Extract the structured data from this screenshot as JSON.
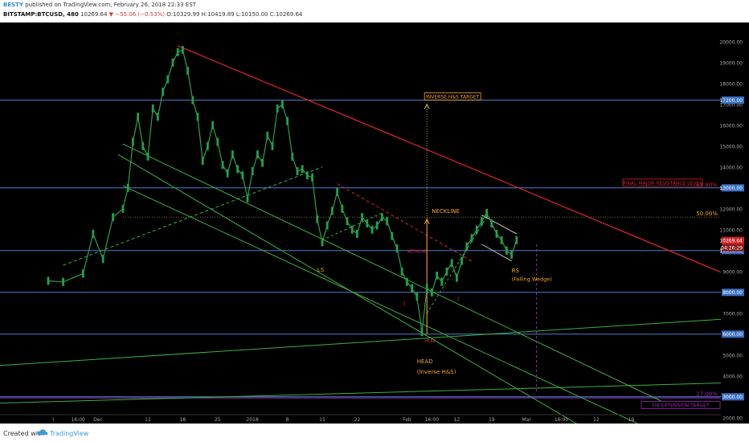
{
  "header": {
    "author": "BESTY",
    "published": "published on TradingView.com, February 26, 2018 22:33 EST",
    "symbol": "BITSTAMP:BTCUSD, 480",
    "price": "10269.64",
    "change": "▼ −55.06 (−0.53%)",
    "ohlc": "O:10329.99 H:10419.89 L:10150.00 C:10269.64"
  },
  "footer": {
    "created": "Created with",
    "brand": "TradingView"
  },
  "colors": {
    "resistance": "#d2232a",
    "channel": "#3cb043",
    "hline": "#4a7fd4",
    "target": "#f5a623",
    "fib": "#9b27b0"
  },
  "chart_data": {
    "type": "line",
    "title": "",
    "ylim": [
      1000,
      20800
    ],
    "y_ticks": [
      2000,
      3000,
      4000,
      5000,
      6000,
      7000,
      8000,
      9000,
      10000,
      11000,
      12000,
      13000,
      14000,
      15000,
      16000,
      17000,
      18000,
      19000,
      20000
    ],
    "y_tick_labels": [
      "2000.00",
      "3000.00",
      "4000.00",
      "5000.00",
      "6000.00",
      "7000.00",
      "8000.00",
      "9000.00",
      "10000.00",
      "11000.00",
      "12000.00",
      "13000.00",
      "14000.00",
      "15000.00",
      "16000.00",
      "17000.00",
      "18000.00",
      "19000.00",
      "20000.00"
    ],
    "x_ticks": [
      {
        "day": -14,
        "label": "I"
      },
      {
        "day": -9,
        "label": "16:00"
      },
      {
        "day": -5,
        "label": "Dec"
      },
      {
        "day": 5,
        "label": "11"
      },
      {
        "day": 12,
        "label": "18"
      },
      {
        "day": 19,
        "label": "25"
      },
      {
        "day": 26,
        "label": "2018"
      },
      {
        "day": 33,
        "label": "8"
      },
      {
        "day": 40,
        "label": "15"
      },
      {
        "day": 47,
        "label": "22"
      },
      {
        "day": 57,
        "label": "Feb"
      },
      {
        "day": 62,
        "label": "16:00"
      },
      {
        "day": 67,
        "label": "12"
      },
      {
        "day": 74,
        "label": "19"
      },
      {
        "day": 81,
        "label": "Mar"
      },
      {
        "day": 88,
        "label": "16:00"
      },
      {
        "day": 95,
        "label": "12"
      },
      {
        "day": 102,
        "label": "19"
      }
    ],
    "series": [
      {
        "price_path": [
          [
            -15,
            8550
          ],
          [
            -12,
            8500
          ],
          [
            -8,
            8900
          ],
          [
            -6,
            10800
          ],
          [
            -4,
            9600
          ],
          [
            -2,
            11600
          ],
          [
            0,
            12000
          ],
          [
            1,
            13000
          ],
          [
            2,
            15200
          ],
          [
            3,
            16400
          ],
          [
            4,
            15000
          ],
          [
            5,
            14500
          ],
          [
            6,
            16800
          ],
          [
            7,
            16400
          ],
          [
            8,
            17600
          ],
          [
            9,
            18200
          ],
          [
            10,
            19000
          ],
          [
            11,
            19500
          ],
          [
            12,
            19600
          ],
          [
            13,
            18600
          ],
          [
            14,
            17200
          ],
          [
            15,
            16400
          ],
          [
            16,
            14300
          ],
          [
            17,
            15000
          ],
          [
            18,
            16000
          ],
          [
            19,
            15200
          ],
          [
            20,
            14100
          ],
          [
            21,
            13700
          ],
          [
            22,
            14600
          ],
          [
            23,
            13900
          ],
          [
            24,
            13600
          ],
          [
            25,
            12500
          ],
          [
            26,
            13800
          ],
          [
            27,
            14600
          ],
          [
            28,
            14200
          ],
          [
            29,
            15500
          ],
          [
            30,
            15000
          ],
          [
            31,
            16800
          ],
          [
            32,
            17000
          ],
          [
            33,
            16200
          ],
          [
            34,
            14500
          ],
          [
            35,
            13800
          ],
          [
            36,
            13900
          ],
          [
            37,
            13600
          ],
          [
            38,
            13500
          ],
          [
            39,
            11500
          ],
          [
            40,
            10400
          ],
          [
            41,
            11200
          ],
          [
            42,
            11900
          ],
          [
            43,
            12800
          ],
          [
            44,
            12000
          ],
          [
            45,
            11400
          ],
          [
            46,
            11000
          ],
          [
            47,
            10800
          ],
          [
            48,
            11600
          ],
          [
            49,
            11300
          ],
          [
            50,
            11000
          ],
          [
            51,
            11200
          ],
          [
            52,
            11600
          ],
          [
            53,
            11400
          ],
          [
            54,
            10700
          ],
          [
            55,
            10100
          ],
          [
            56,
            9000
          ],
          [
            57,
            8500
          ],
          [
            58,
            8200
          ],
          [
            59,
            7800
          ],
          [
            60,
            6100
          ],
          [
            61,
            8200
          ],
          [
            62,
            8000
          ],
          [
            63,
            8800
          ],
          [
            64,
            8500
          ],
          [
            65,
            9000
          ],
          [
            66,
            9400
          ],
          [
            67,
            8700
          ],
          [
            68,
            9500
          ],
          [
            69,
            10200
          ],
          [
            70,
            10600
          ],
          [
            71,
            11000
          ],
          [
            72,
            11400
          ],
          [
            73,
            11800
          ],
          [
            74,
            11300
          ],
          [
            75,
            10800
          ],
          [
            76,
            10500
          ],
          [
            77,
            10000
          ],
          [
            78,
            9800
          ],
          [
            79,
            10500
          ]
        ]
      }
    ],
    "annotations": {
      "hlines": [
        17200,
        13000,
        10000,
        8000,
        6000,
        3000
      ],
      "hline_labels": [
        "17200.00",
        "13000.00",
        "10000.00",
        "8000.00",
        "6000.00",
        "3000.00"
      ],
      "price_tag": "10269.64",
      "countdown": "04:26:29",
      "fib_levels": [
        {
          "value": 11600,
          "label": "50.00%"
        },
        {
          "value": 12980,
          "label": "61.80%"
        },
        {
          "value": 2980,
          "label": "27.00%"
        }
      ],
      "texts": {
        "inverse_target": "INVERSE H&S TARGET",
        "final_resistance": "FINAL MAJOR RESISTANCE LEVEL",
        "fib_target": "FIB EXTENSION TARGET",
        "neckline": "NECKLINE",
        "neckline_small": "NECKLINE",
        "ls": "LS",
        "rs": "RS",
        "falling_wedge": "(Falling Wedge)",
        "head": "HEAD",
        "head_small": "HEAD",
        "inverse_hs": "(Inverse H&S)",
        "num1": "1",
        "num2": "2"
      }
    }
  }
}
